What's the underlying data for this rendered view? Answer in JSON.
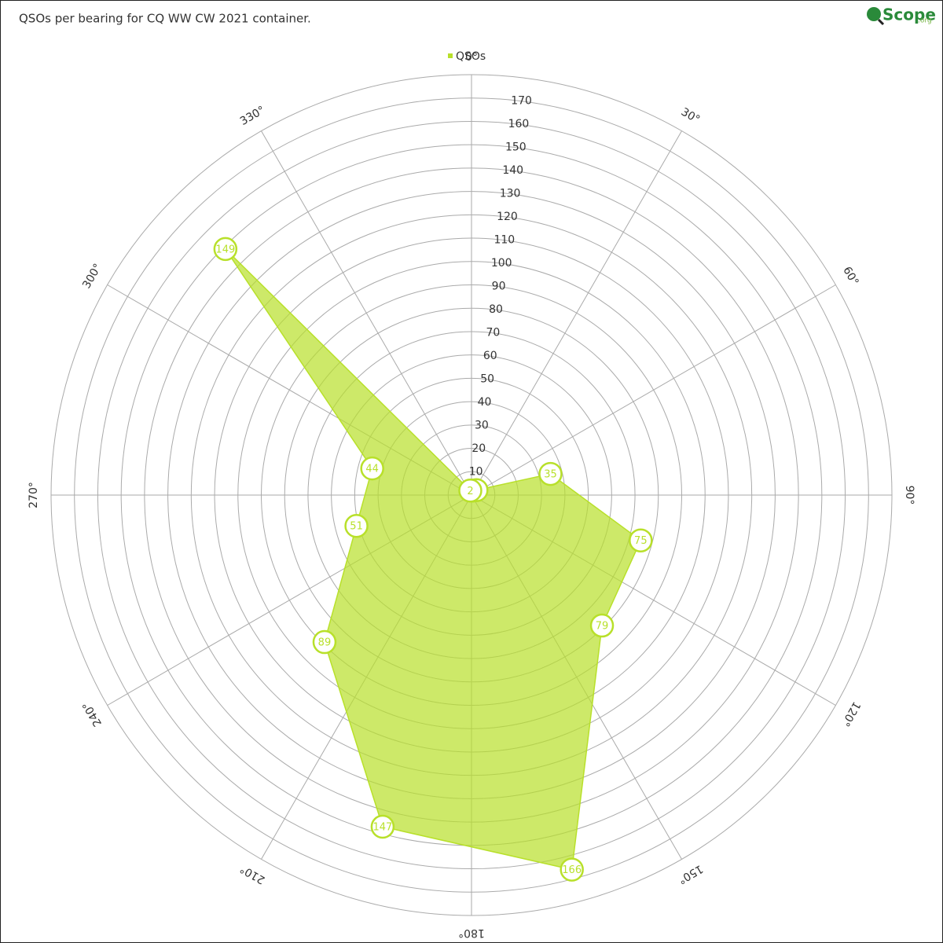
{
  "logo": {
    "text": "Scope",
    "suffix": ".org"
  },
  "chart_data": {
    "type": "polar-area",
    "title": "QSOs per bearing for CQ WW CW 2021 container.",
    "x": [
      15,
      45,
      75,
      105,
      135,
      165,
      195,
      225,
      255,
      285,
      315,
      345
    ],
    "series": [
      {
        "name": "QSOs",
        "color": "#b8e02a",
        "values": [
          2,
          3,
          35,
          75,
          79,
          166,
          147,
          89,
          51,
          44,
          149,
          2
        ]
      }
    ],
    "xticks": [
      {
        "value": 0,
        "label": "0°"
      },
      {
        "value": 30,
        "label": "30°"
      },
      {
        "value": 60,
        "label": "60°"
      },
      {
        "value": 90,
        "label": "90°"
      },
      {
        "value": 120,
        "label": "120°"
      },
      {
        "value": 150,
        "label": "150°"
      },
      {
        "value": 180,
        "label": "180°"
      },
      {
        "value": 210,
        "label": "210°"
      },
      {
        "value": 240,
        "label": "240°"
      },
      {
        "value": 270,
        "label": "270°"
      },
      {
        "value": 300,
        "label": "300°"
      },
      {
        "value": 330,
        "label": "330°"
      }
    ],
    "ylim": [
      0,
      180
    ],
    "yticks": [
      10,
      20,
      30,
      40,
      50,
      60,
      70,
      80,
      90,
      100,
      110,
      120,
      130,
      140,
      150,
      160,
      170
    ],
    "grid": true,
    "legend": "top"
  }
}
